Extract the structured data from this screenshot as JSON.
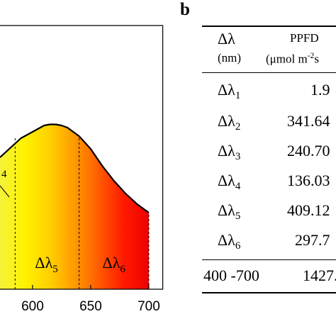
{
  "panel_b_label": "b",
  "chart_data": {
    "type": "area",
    "title": "",
    "xlabel": "",
    "ylabel": "",
    "x_ticks": [
      600,
      650,
      700
    ],
    "xlim": [
      572,
      712
    ],
    "spectrum_x": [
      572,
      580,
      590,
      600,
      610,
      615,
      620,
      625,
      630,
      640,
      650,
      660,
      670,
      680,
      690,
      700
    ],
    "spectrum_y": [
      0.62,
      0.66,
      0.71,
      0.74,
      0.77,
      0.775,
      0.775,
      0.77,
      0.76,
      0.72,
      0.66,
      0.58,
      0.51,
      0.45,
      0.4,
      0.36
    ],
    "band_boundaries": [
      585,
      640,
      700
    ],
    "band_labels": [
      {
        "base": "Δλ",
        "sub": "5"
      },
      {
        "base": "Δλ",
        "sub": "6"
      }
    ],
    "partial_label": "4",
    "gradient_colors": [
      "#f4f23a",
      "#fff200",
      "#ffd000",
      "#ff9a00",
      "#ff5a00",
      "#ff1a00",
      "#ee0000"
    ]
  },
  "table": {
    "header": {
      "col1": "Δλ",
      "col1_unit": "(nm)",
      "col2": "PPFD",
      "col2_unit_pre": "(μmol m",
      "col2_unit_sup": "-2",
      "col2_unit_post": "s"
    },
    "rows": [
      {
        "sub": "1",
        "value": "1.9"
      },
      {
        "sub": "2",
        "value": "341.64"
      },
      {
        "sub": "3",
        "value": "240.70"
      },
      {
        "sub": "4",
        "value": "136.03"
      },
      {
        "sub": "5",
        "value": "409.12"
      },
      {
        "sub": "6",
        "value": "297.7"
      }
    ],
    "row_base": "Δλ",
    "total_label": "400 -700",
    "total_value": "1427."
  }
}
